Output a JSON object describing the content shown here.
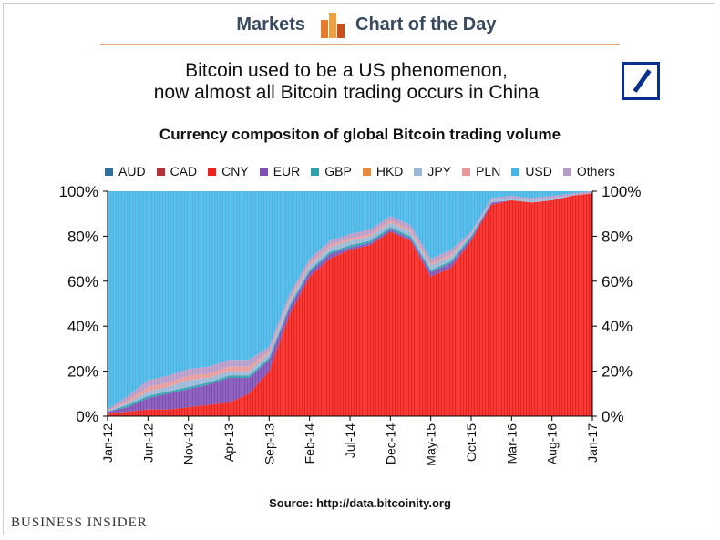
{
  "header": {
    "left_label": "Markets",
    "right_label": "Chart of the Day",
    "logo_icon": "bar-chart-icon"
  },
  "title": {
    "line1": "Bitcoin used to be a US phenomenon,",
    "line2": "now almost all Bitcoin trading occurs in China"
  },
  "publisher_logo": "deutsche-bank-logo",
  "footer": {
    "source": "Source: http://data.bitcoinity.org",
    "brand": "BUSINESS INSIDER"
  },
  "chart_data": {
    "type": "area",
    "title": "Currency compositon of global Bitcoin trading volume",
    "stacked": true,
    "xlabel": "",
    "ylabel": "",
    "ylim": [
      0,
      100
    ],
    "y_ticks": [
      "0%",
      "20%",
      "40%",
      "60%",
      "80%",
      "100%"
    ],
    "y_tick_values": [
      0,
      20,
      40,
      60,
      80,
      100
    ],
    "x_tick_labels": [
      "Jan-12",
      "Jun-12",
      "Nov-12",
      "Apr-13",
      "Sep-13",
      "Feb-14",
      "Jul-14",
      "Dec-14",
      "May-15",
      "Oct-15",
      "Mar-16",
      "Aug-16",
      "Jan-17"
    ],
    "legend": [
      "AUD",
      "CAD",
      "CNY",
      "EUR",
      "GBP",
      "HKD",
      "JPY",
      "PLN",
      "USD",
      "Others"
    ],
    "legend_position": "top",
    "colors": {
      "AUD": "#2f6e9e",
      "CAD": "#b5313a",
      "CNY": "#f0211c",
      "EUR": "#7f4fb5",
      "GBP": "#2e9fae",
      "HKD": "#e8893a",
      "JPY": "#9ab8d8",
      "PLN": "#e89a9a",
      "USD": "#45b6e6",
      "Others": "#b59ac8"
    },
    "x": [
      "Jan-12",
      "Mar-12",
      "Jun-12",
      "Aug-12",
      "Nov-12",
      "Jan-13",
      "Apr-13",
      "Jun-13",
      "Sep-13",
      "Nov-13",
      "Feb-14",
      "Apr-14",
      "Jul-14",
      "Sep-14",
      "Dec-14",
      "Feb-15",
      "May-15",
      "Jul-15",
      "Oct-15",
      "Dec-15",
      "Mar-16",
      "May-16",
      "Aug-16",
      "Oct-16",
      "Jan-17"
    ],
    "series": [
      {
        "name": "CNY",
        "values": [
          1,
          2,
          3,
          3,
          4,
          5,
          6,
          10,
          20,
          45,
          62,
          70,
          74,
          76,
          82,
          78,
          62,
          66,
          78,
          94,
          96,
          95,
          96,
          98,
          99
        ]
      },
      {
        "name": "EUR",
        "values": [
          1,
          2,
          5,
          7,
          8,
          9,
          11,
          7,
          5,
          3,
          2,
          2,
          1,
          1,
          1,
          1,
          2,
          2,
          1,
          1,
          0,
          0,
          0,
          0,
          0
        ]
      },
      {
        "name": "GBP",
        "values": [
          0,
          1,
          1,
          1,
          1,
          1,
          1,
          1,
          1,
          1,
          1,
          1,
          1,
          1,
          1,
          1,
          1,
          1,
          1,
          0,
          0,
          0,
          0,
          0,
          0
        ]
      },
      {
        "name": "JPY",
        "values": [
          0,
          1,
          2,
          2,
          3,
          2,
          2,
          2,
          2,
          2,
          2,
          2,
          2,
          2,
          2,
          2,
          2,
          2,
          1,
          1,
          1,
          1,
          1,
          0,
          0
        ]
      },
      {
        "name": "PLN",
        "values": [
          0,
          1,
          2,
          2,
          2,
          2,
          2,
          2,
          1,
          1,
          1,
          1,
          1,
          1,
          1,
          1,
          1,
          1,
          0,
          0,
          0,
          0,
          0,
          0,
          0
        ]
      },
      {
        "name": "Others",
        "values": [
          1,
          2,
          3,
          3,
          3,
          3,
          3,
          3,
          2,
          2,
          2,
          2,
          2,
          2,
          2,
          2,
          2,
          2,
          1,
          1,
          1,
          1,
          1,
          1,
          1
        ]
      },
      {
        "name": "USD",
        "values": [
          97,
          91,
          84,
          82,
          79,
          78,
          75,
          75,
          69,
          46,
          30,
          22,
          19,
          17,
          11,
          15,
          30,
          26,
          18,
          3,
          2,
          3,
          2,
          1,
          0
        ]
      }
    ]
  }
}
